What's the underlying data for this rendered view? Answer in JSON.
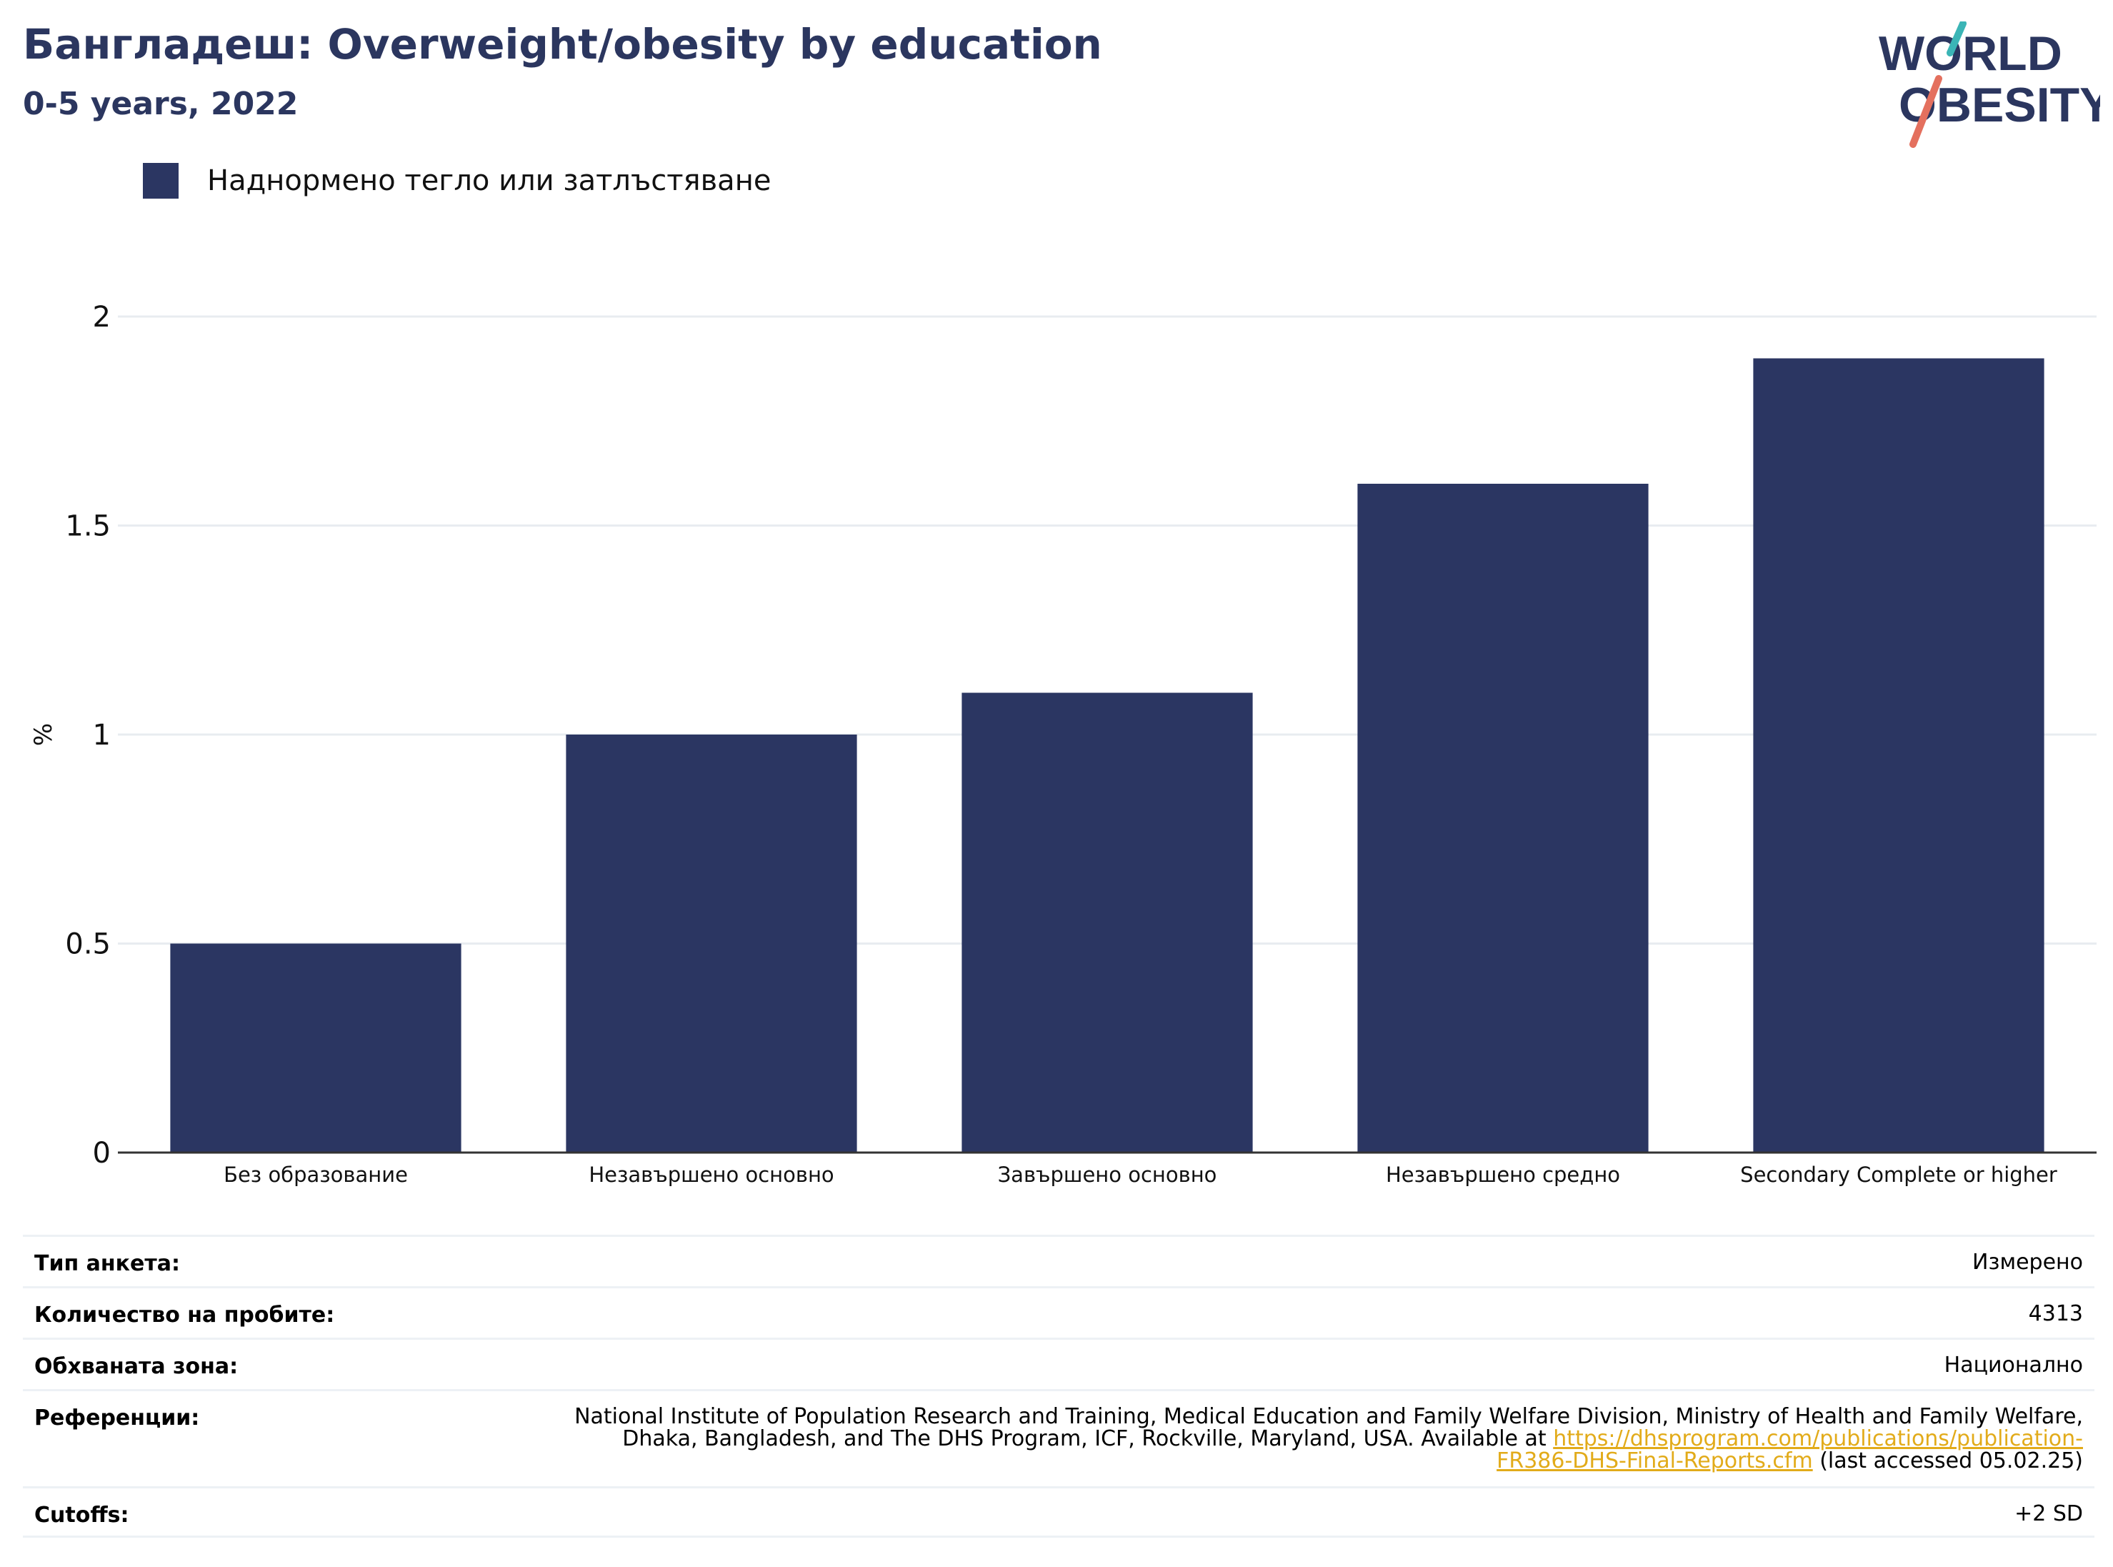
{
  "header": {
    "title": "Бангладеш: Overweight/obesity by education",
    "subtitle": "0-5 years, 2022"
  },
  "logo": {
    "line1": "WORLD",
    "line2": "OBESITY",
    "icon": "world-obesity-logo"
  },
  "colors": {
    "bar": "#2b3662",
    "title": "#2b365f",
    "grid": "#e8ecf0",
    "link": "#e2ab1a",
    "logo_teal": "#3bb5b6",
    "logo_coral": "#e4705e"
  },
  "chart_data": {
    "type": "bar",
    "categories": [
      "Без образование",
      "Незавършено основно",
      "Завършено основно",
      "Незавършено средно",
      "Secondary Complete or higher"
    ],
    "series": [
      {
        "name": "Наднормено тегло или затлъстяване",
        "values": [
          0.5,
          1.0,
          1.1,
          1.6,
          1.9
        ]
      }
    ],
    "ylabel": "%",
    "xlabel": "",
    "ylim": [
      0,
      2
    ],
    "yticks": [
      0,
      0.5,
      1,
      1.5,
      2
    ],
    "ytick_labels": [
      "0",
      "0.5",
      "1",
      "1.5",
      "2"
    ],
    "grid": true,
    "legend": "top-left"
  },
  "info": {
    "survey_type": {
      "label": "Тип анкета:",
      "value": "Измерено"
    },
    "sample_size": {
      "label": "Количество на пробите:",
      "value": "4313"
    },
    "area": {
      "label": "Обхваната зона:",
      "value": "Национално"
    },
    "references": {
      "label": "Референции:",
      "text_line1": "National Institute of Population Research and Training, Medical Education and Family Welfare Division, Ministry of Health and Family Welfare,",
      "text_line2_pre": "Dhaka, Bangladesh, and The DHS Program, ICF, Rockville, Maryland, USA. Available at ",
      "link_line2": "https://dhsprogram.com/publications/publication-",
      "link_line3": "FR386-DHS-Final-Reports.cfm",
      "text_line3_post": " (last accessed 05.02.25)"
    },
    "cutoffs": {
      "label": "Cutoffs:",
      "value": "+2 SD"
    }
  }
}
